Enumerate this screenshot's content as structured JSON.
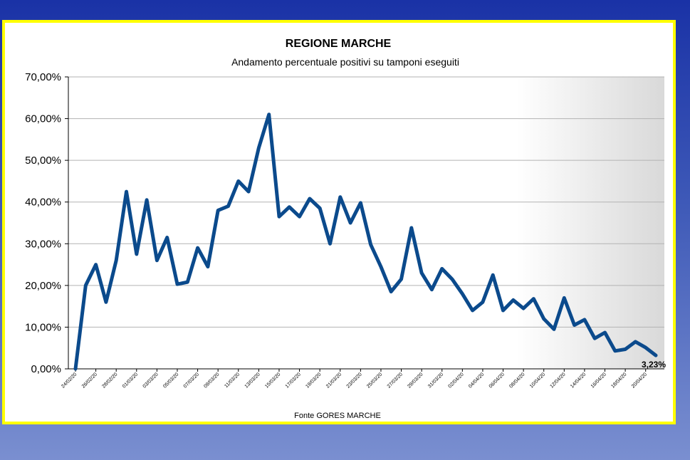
{
  "chart_data": {
    "type": "line",
    "title": "REGIONE MARCHE",
    "subtitle": "Andamento percentuale positivi su tamponi eseguiti",
    "source": "Fonte GORES MARCHE",
    "ylim": [
      0,
      70
    ],
    "y_ticks": [
      "0,00%",
      "10,00%",
      "20,00%",
      "30,00%",
      "40,00%",
      "50,00%",
      "60,00%",
      "70,00%"
    ],
    "y_tick_values": [
      0,
      10,
      20,
      30,
      40,
      50,
      60,
      70
    ],
    "x_tick_labels": [
      "24/02/20",
      "26/02/20",
      "28/02/20",
      "01/03/20",
      "03/03/20",
      "05/03/20",
      "07/03/20",
      "09/03/20",
      "11/03/20",
      "13/03/20",
      "15/03/20",
      "17/03/20",
      "19/03/20",
      "21/03/20",
      "23/03/20",
      "25/03/20",
      "27/03/20",
      "29/03/20",
      "31/03/20",
      "02/04/20",
      "04/04/20",
      "06/04/20",
      "08/04/20",
      "10/04/20",
      "12/04/20",
      "14/04/20",
      "16/04/20",
      "18/04/20",
      "20/04/20"
    ],
    "series": [
      {
        "color": "#0b4a8c",
        "values": [
          0,
          20,
          25,
          16,
          26,
          42.5,
          27.5,
          40.5,
          26,
          31.5,
          20.3,
          20.8,
          29,
          24.5,
          38,
          39,
          45,
          42.5,
          53,
          61,
          36.5,
          38.8,
          36.5,
          40.8,
          38.5,
          30,
          41.2,
          35,
          39.8,
          29.8,
          24.5,
          18.5,
          21.5,
          33.8,
          23,
          19,
          24,
          21.5,
          18,
          14,
          16,
          22.5,
          14,
          16.5,
          14.5,
          16.8,
          12,
          9.5,
          17,
          10.5,
          11.8,
          7.3,
          8.7,
          4.3,
          4.7,
          6.5,
          5.1,
          3.23
        ]
      }
    ],
    "end_label": "3,23%",
    "grid": true,
    "shaded_region": "right"
  }
}
